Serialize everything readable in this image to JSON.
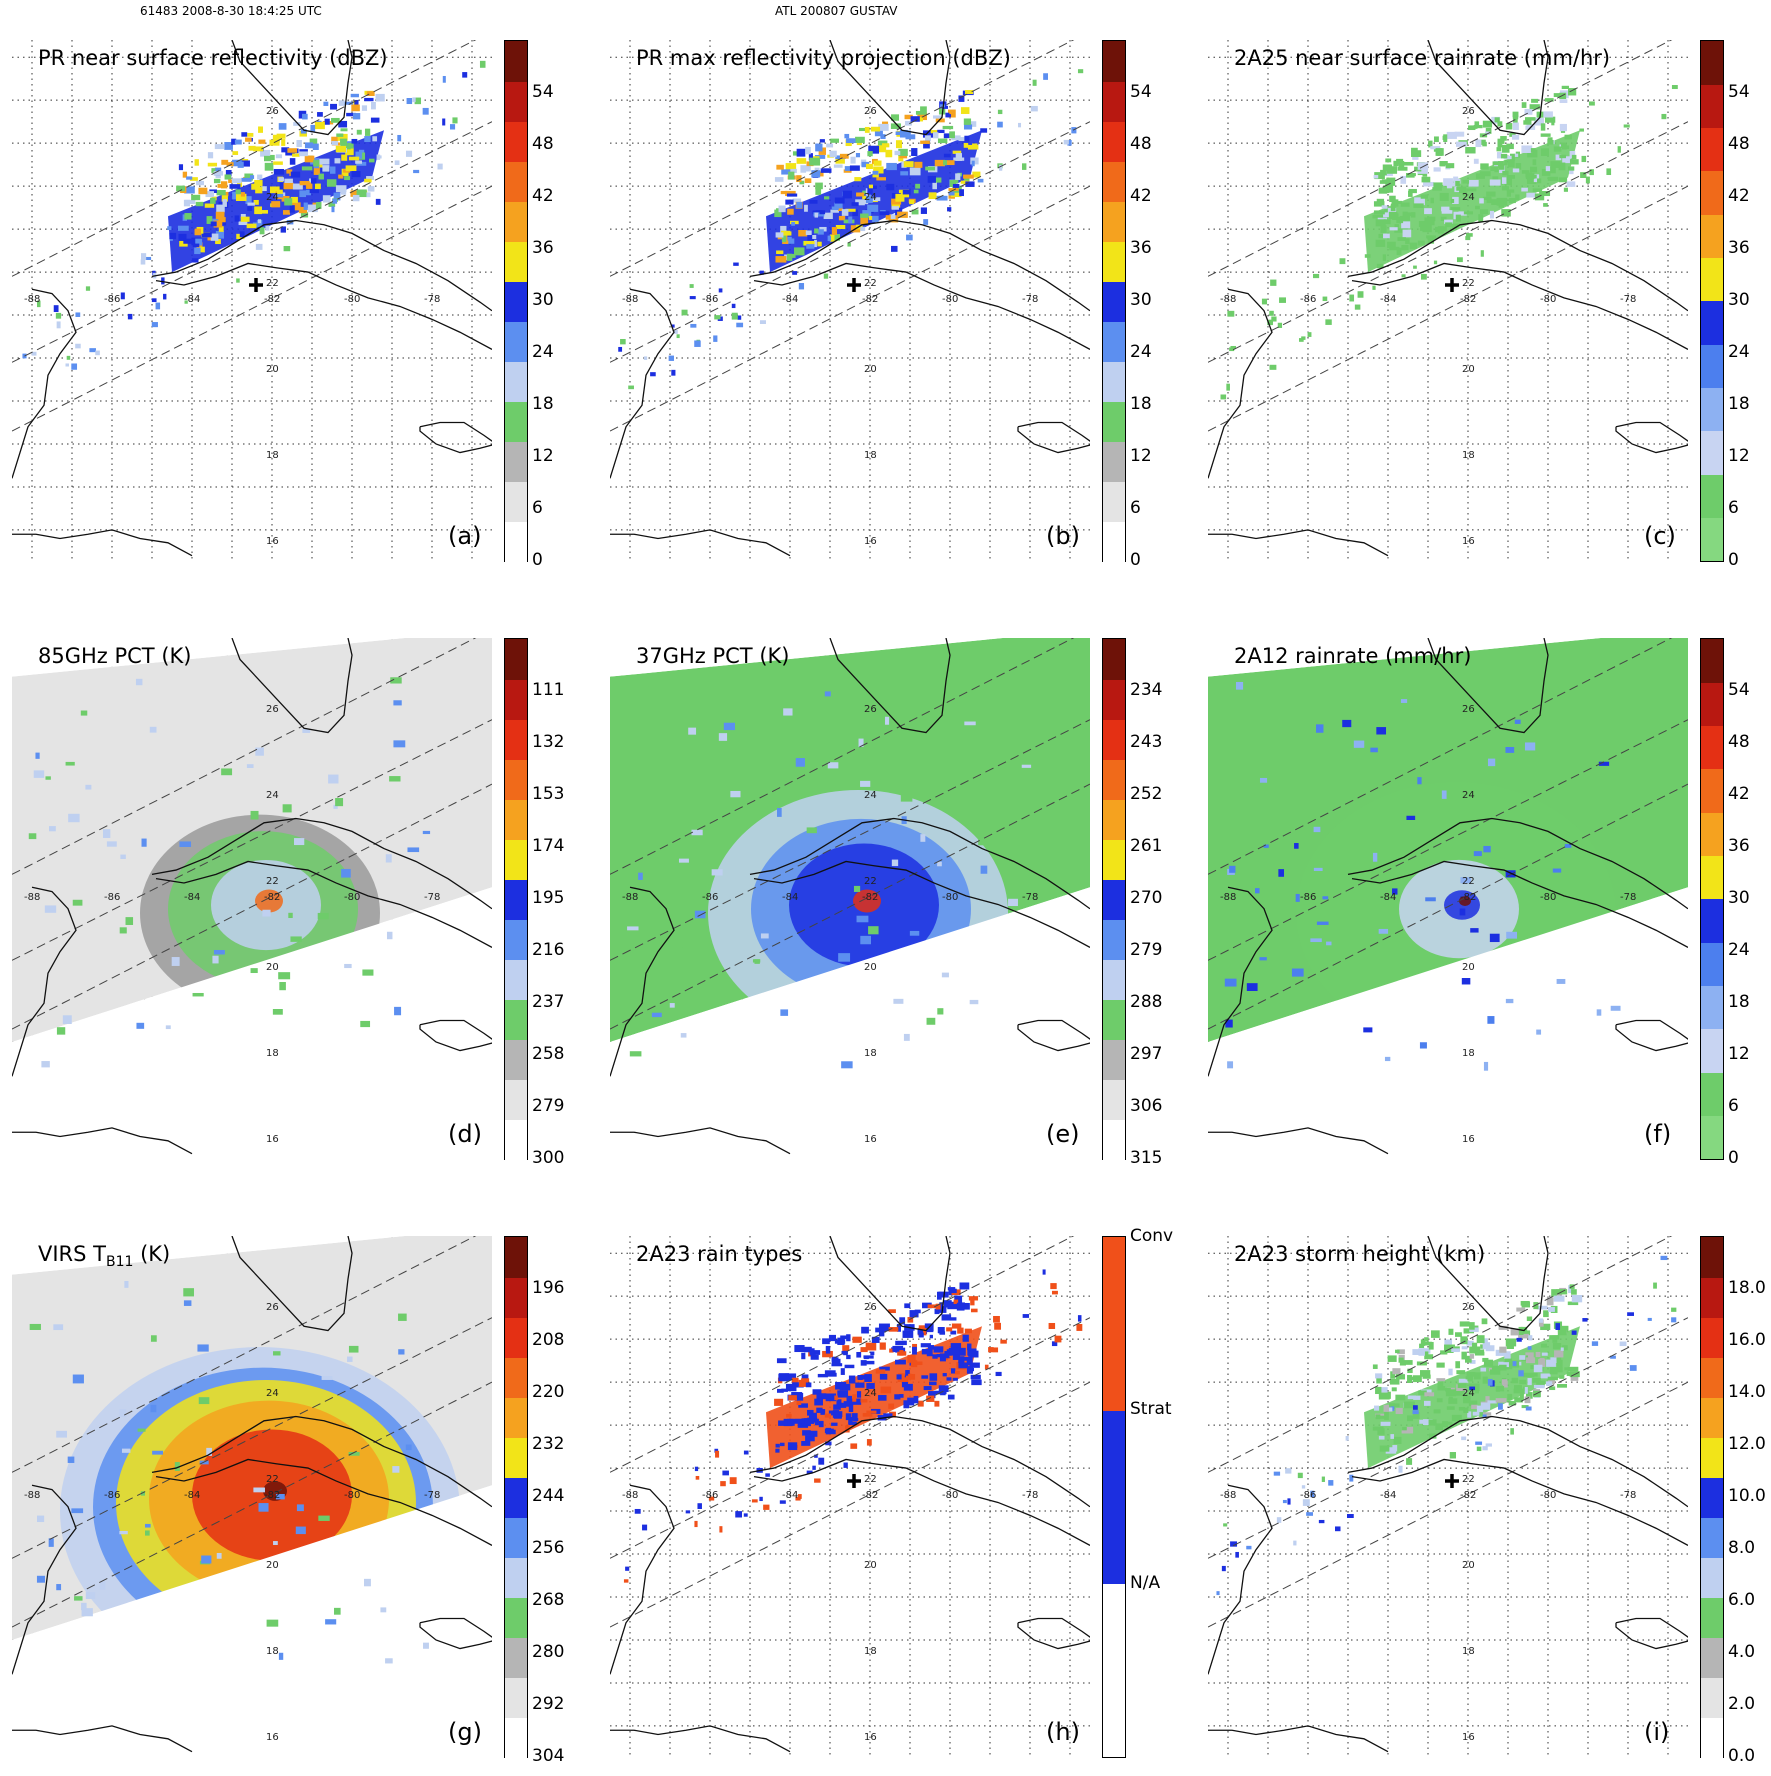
{
  "header": {
    "orbit_time": "61483 2008-8-30 18:4:25 UTC",
    "storm": "ATL 200807 GUSTAV"
  },
  "map": {
    "lon_labels": [
      "-88",
      "-86",
      "-84",
      "-82",
      "-80",
      "-78"
    ],
    "lat_labels": [
      "26",
      "24",
      "22",
      "20",
      "18",
      "16"
    ],
    "lon_range": [
      -88.5,
      -76.5
    ],
    "lat_range": [
      15.3,
      27.4
    ]
  },
  "panels": [
    {
      "id": "a",
      "label": "(a)",
      "title": "PR near surface reflectivity (dBZ)",
      "title_sub": "",
      "title_suffix": "",
      "field": "swath",
      "colorbar": {
        "ticks": [
          "0",
          "6",
          "12",
          "18",
          "24",
          "30",
          "36",
          "42",
          "48",
          "54"
        ],
        "colors": [
          "#ffffff",
          "#e4e4e4",
          "#b5b5b5",
          "#6ecc6a",
          "#bfd0f0",
          "#5c8ff0",
          "#1c2fe0",
          "#f2e418",
          "#f5a21f",
          "#f06a1a",
          "#e43014",
          "#b81811",
          "#6e1208"
        ]
      }
    },
    {
      "id": "b",
      "label": "(b)",
      "title": "PR max reflectivity projection (dBZ)",
      "title_sub": "",
      "title_suffix": "",
      "field": "swath",
      "colorbar": {
        "ticks": [
          "0",
          "6",
          "12",
          "18",
          "24",
          "30",
          "36",
          "42",
          "48",
          "54"
        ],
        "colors": [
          "#ffffff",
          "#e4e4e4",
          "#b5b5b5",
          "#6ecc6a",
          "#bfd0f0",
          "#5c8ff0",
          "#1c2fe0",
          "#f2e418",
          "#f5a21f",
          "#f06a1a",
          "#e43014",
          "#b81811",
          "#6e1208"
        ]
      }
    },
    {
      "id": "c",
      "label": "(c)",
      "title": "2A25 near surface rainrate (mm/hr)",
      "title_sub": "",
      "title_suffix": "",
      "field": "swath",
      "colorbar": {
        "ticks": [
          "0",
          "6",
          "12",
          "18",
          "24",
          "30",
          "36",
          "42",
          "48",
          "54"
        ],
        "colors": [
          "#85d880",
          "#6ecc6a",
          "#c8d4f2",
          "#8db1f2",
          "#4c7fee",
          "#1c2fe0",
          "#f2e418",
          "#f5a21f",
          "#f06a1a",
          "#e43014",
          "#b81811",
          "#6e1208"
        ]
      }
    },
    {
      "id": "d",
      "label": "(d)",
      "title": "85GHz PCT (K)",
      "title_sub": "",
      "title_suffix": "",
      "field": "wide",
      "colorbar": {
        "ticks": [
          "300",
          "279",
          "258",
          "237",
          "216",
          "195",
          "174",
          "153",
          "132",
          "111"
        ],
        "colors": [
          "#ffffff",
          "#e4e4e4",
          "#b5b5b5",
          "#6ecc6a",
          "#bfd0f0",
          "#5c8ff0",
          "#1c2fe0",
          "#f2e418",
          "#f5a21f",
          "#f06a1a",
          "#e43014",
          "#b81811",
          "#6e1208"
        ]
      }
    },
    {
      "id": "e",
      "label": "(e)",
      "title": "37GHz PCT (K)",
      "title_sub": "",
      "title_suffix": "",
      "field": "wide",
      "colorbar": {
        "ticks": [
          "315",
          "306",
          "297",
          "288",
          "279",
          "270",
          "261",
          "252",
          "243",
          "234"
        ],
        "colors": [
          "#ffffff",
          "#e4e4e4",
          "#b5b5b5",
          "#6ecc6a",
          "#bfd0f0",
          "#5c8ff0",
          "#1c2fe0",
          "#f2e418",
          "#f5a21f",
          "#f06a1a",
          "#e43014",
          "#b81811",
          "#6e1208"
        ]
      }
    },
    {
      "id": "f",
      "label": "(f)",
      "title": "2A12 rainrate (mm/hr)",
      "title_sub": "",
      "title_suffix": "",
      "field": "wide",
      "colorbar": {
        "ticks": [
          "0",
          "6",
          "12",
          "18",
          "24",
          "30",
          "36",
          "42",
          "48",
          "54"
        ],
        "colors": [
          "#85d880",
          "#6ecc6a",
          "#c8d4f2",
          "#8db1f2",
          "#4c7fee",
          "#1c2fe0",
          "#f2e418",
          "#f5a21f",
          "#f06a1a",
          "#e43014",
          "#b81811",
          "#6e1208"
        ]
      }
    },
    {
      "id": "g",
      "label": "(g)",
      "title": "VIRS T",
      "title_sub": "B11",
      "title_suffix": " (K)",
      "field": "wide",
      "colorbar": {
        "ticks": [
          "304",
          "292",
          "280",
          "268",
          "256",
          "244",
          "232",
          "220",
          "208",
          "196"
        ],
        "colors": [
          "#ffffff",
          "#e4e4e4",
          "#b5b5b5",
          "#6ecc6a",
          "#bfd0f0",
          "#5c8ff0",
          "#1c2fe0",
          "#f2e418",
          "#f5a21f",
          "#f06a1a",
          "#e43014",
          "#b81811",
          "#6e1208"
        ]
      }
    },
    {
      "id": "h",
      "label": "(h)",
      "title": "2A23 rain types",
      "title_sub": "",
      "title_suffix": "",
      "field": "swath",
      "colorbar": {
        "type": "categorical",
        "categories": [
          "N/A",
          "Strat",
          "Conv"
        ],
        "colors": [
          "#ffffff",
          "#1c2fe0",
          "#f0501a"
        ]
      }
    },
    {
      "id": "i",
      "label": "(i)",
      "title": "2A23 storm height (km)",
      "title_sub": "",
      "title_suffix": "",
      "field": "swath",
      "colorbar": {
        "ticks": [
          "0.0",
          "2.0",
          "4.0",
          "6.0",
          "8.0",
          "10.0",
          "12.0",
          "14.0",
          "16.0",
          "18.0"
        ],
        "colors": [
          "#ffffff",
          "#e4e4e4",
          "#b5b5b5",
          "#6ecc6a",
          "#bfd0f0",
          "#5c8ff0",
          "#1c2fe0",
          "#f2e418",
          "#f5a21f",
          "#f06a1a",
          "#e43014",
          "#b81811",
          "#6e1208"
        ]
      }
    }
  ]
}
